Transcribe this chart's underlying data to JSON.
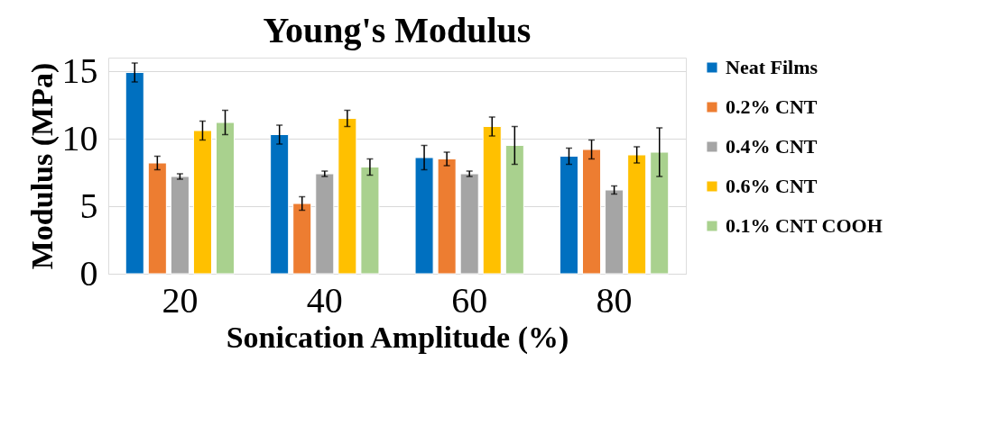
{
  "chart_data": {
    "type": "bar",
    "title": "Young's Modulus",
    "xlabel": "Sonication Amplitude (%)",
    "ylabel": "Modulus (MPa)",
    "categories": [
      "20",
      "40",
      "60",
      "80"
    ],
    "series": [
      {
        "name": "Neat Films",
        "color": "#0070c0",
        "values": [
          14.9,
          10.3,
          8.6,
          8.7
        ],
        "errors": [
          0.7,
          0.7,
          0.9,
          0.6
        ]
      },
      {
        "name": "0.2% CNT",
        "color": "#ed7d31",
        "values": [
          8.2,
          5.2,
          8.5,
          9.2
        ],
        "errors": [
          0.5,
          0.5,
          0.5,
          0.7
        ]
      },
      {
        "name": "0.4% CNT",
        "color": "#a5a5a5",
        "values": [
          7.2,
          7.4,
          7.4,
          6.2
        ],
        "errors": [
          0.2,
          0.2,
          0.2,
          0.3
        ]
      },
      {
        "name": "0.6% CNT",
        "color": "#ffc000",
        "values": [
          10.6,
          11.5,
          10.9,
          8.8
        ],
        "errors": [
          0.7,
          0.6,
          0.7,
          0.6
        ]
      },
      {
        "name": "0.1% CNT COOH",
        "color": "#a9d18e",
        "values": [
          11.2,
          7.9,
          9.5,
          9.0
        ],
        "errors": [
          0.9,
          0.6,
          1.4,
          1.8
        ]
      }
    ],
    "ylim": [
      0,
      16
    ],
    "yticks": [
      0,
      5,
      10,
      15
    ],
    "grid": "y",
    "legend": "right"
  }
}
